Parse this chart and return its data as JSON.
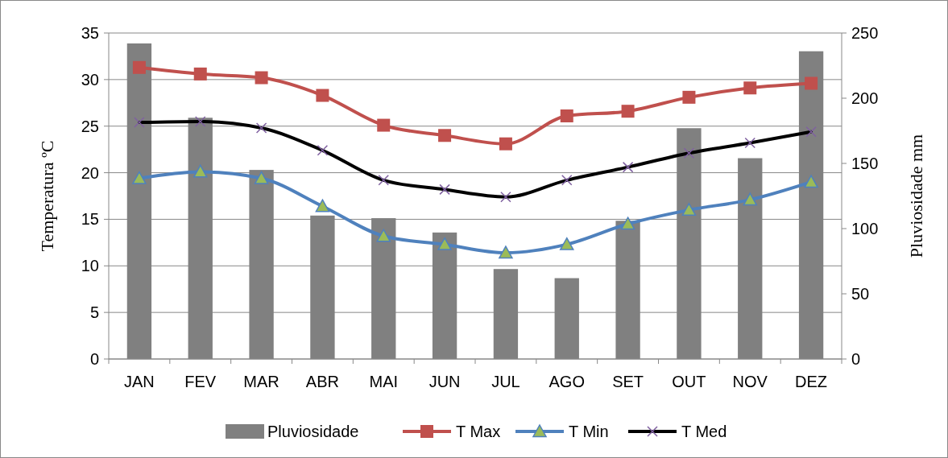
{
  "chart_data": {
    "type": "line",
    "categories": [
      "JAN",
      "FEV",
      "MAR",
      "ABR",
      "MAI",
      "JUN",
      "JUL",
      "AGO",
      "SET",
      "OUT",
      "NOV",
      "DEZ"
    ],
    "ylabel": "Temperatura ºC",
    "y2label": "Pluviosidade mm",
    "ylim": [
      0,
      35
    ],
    "yticks": [
      0,
      5,
      10,
      15,
      20,
      25,
      30,
      35
    ],
    "y2lim": [
      0,
      250
    ],
    "y2ticks": [
      0,
      50,
      100,
      150,
      200,
      250
    ],
    "legend": "bottom",
    "grid": "y",
    "series": [
      {
        "name": "Pluviosidade",
        "type": "bar",
        "axis": "y2",
        "color": "#808080",
        "values": [
          242,
          185,
          145,
          110,
          108,
          97,
          69,
          62,
          106,
          177,
          154,
          236
        ]
      },
      {
        "name": "T Max",
        "marker": "square",
        "color": "#c0504d",
        "values": [
          31.3,
          30.6,
          30.2,
          28.3,
          25.1,
          24.0,
          23.1,
          26.1,
          26.6,
          28.1,
          29.1,
          29.6
        ]
      },
      {
        "name": "T Min",
        "marker": "triangle",
        "color": "#4f81bd",
        "values": [
          19.4,
          20.1,
          19.4,
          16.4,
          13.2,
          12.3,
          11.4,
          12.3,
          14.5,
          16.0,
          17.1,
          19.0
        ]
      },
      {
        "name": "T Med",
        "marker": "cross",
        "color": "#000000",
        "values": [
          25.4,
          25.5,
          24.8,
          22.4,
          19.2,
          18.2,
          17.4,
          19.2,
          20.6,
          22.1,
          23.2,
          24.4
        ]
      }
    ]
  }
}
